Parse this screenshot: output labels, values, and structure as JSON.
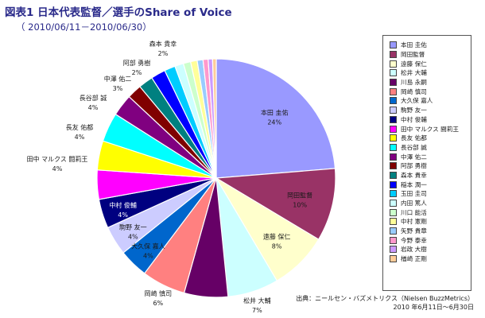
{
  "header": {
    "title": "図表1 日本代表監督／選手のShare of Voice",
    "subtitle": "（ 2010/06/11－2010/06/30）"
  },
  "footer": {
    "source": "出典：ニールセン・バズメトリクス（Nielsen BuzzMetrics）",
    "period": "2010 年6月11日～6月30日"
  },
  "chart_data": {
    "type": "pie",
    "title": "図表1 日本代表監督／選手のShare of Voice",
    "subtitle": "（ 2010/06/11－2010/06/30）",
    "legend_position": "right",
    "unit": "%",
    "slices": [
      {
        "name": "本田 圭佑",
        "value": 24,
        "label": "24%",
        "color": "#9999ff"
      },
      {
        "name": "岡田監督",
        "value": 10,
        "label": "10%",
        "color": "#993366"
      },
      {
        "name": "遠藤 保仁",
        "value": 8,
        "label": "8%",
        "color": "#ffffcc"
      },
      {
        "name": "松井 大輔",
        "value": 7,
        "label": "7%",
        "color": "#ccffff"
      },
      {
        "name": "川島 永嗣",
        "value": 6,
        "label": "6%",
        "color": "#660066"
      },
      {
        "name": "岡崎 慎司",
        "value": 6,
        "label": "6%",
        "color": "#ff8080"
      },
      {
        "name": "大久保 嘉人",
        "value": 4,
        "label": "4%",
        "color": "#0066cc"
      },
      {
        "name": "駒野 友一",
        "value": 4,
        "label": "4%",
        "color": "#ccccff"
      },
      {
        "name": "中村 俊輔",
        "value": 4,
        "label": "4%",
        "color": "#000080"
      },
      {
        "name": "田中 マルクス 闘莉王",
        "value": 4,
        "label": "4%",
        "color": "#ff00ff"
      },
      {
        "name": "長友 佑都",
        "value": 4,
        "label": "4%",
        "color": "#ffff00"
      },
      {
        "name": "長谷部 誠",
        "value": 4,
        "label": "4%",
        "color": "#00ffff"
      },
      {
        "name": "中澤 佑二",
        "value": 3,
        "label": "3%",
        "color": "#800080"
      },
      {
        "name": "阿部 勇樹",
        "value": 2,
        "label": "2%",
        "color": "#800000"
      },
      {
        "name": "森本 貴幸",
        "value": 2,
        "label": "2%",
        "color": "#008080"
      },
      {
        "name": "稲本 潤一",
        "value": 2,
        "label": "",
        "color": "#0000ff"
      },
      {
        "name": "玉田 圭司",
        "value": 1.5,
        "label": "",
        "color": "#00ccff"
      },
      {
        "name": "内田 篤人",
        "value": 1.2,
        "label": "",
        "color": "#ccffff"
      },
      {
        "name": "川口 能活",
        "value": 1,
        "label": "",
        "color": "#ccffcc"
      },
      {
        "name": "中村 憲剛",
        "value": 0.9,
        "label": "",
        "color": "#ffff99"
      },
      {
        "name": "矢野 貴章",
        "value": 0.8,
        "label": "",
        "color": "#99ccff"
      },
      {
        "name": "今野 泰幸",
        "value": 0.7,
        "label": "",
        "color": "#ff99cc"
      },
      {
        "name": "岩政 大樹",
        "value": 0.6,
        "label": "",
        "color": "#cc99ff"
      },
      {
        "name": "楢崎 正剛",
        "value": 0.5,
        "label": "",
        "color": "#ffcc99"
      }
    ]
  }
}
